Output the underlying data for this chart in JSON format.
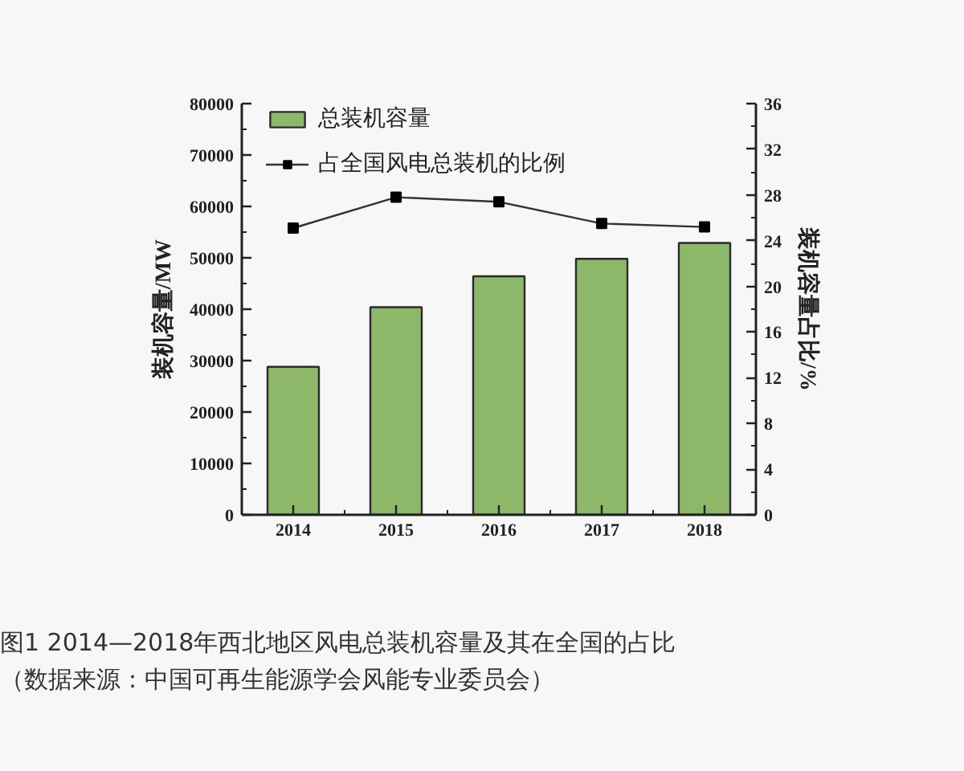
{
  "chart_data": {
    "type": "bar",
    "title": "图1 2014—2018年西北地区风电总装机容量及其在全国的占比",
    "annotations": [
      "（数据来源：中国可再生能源学会风能专业委员会）"
    ],
    "categories": [
      "2014",
      "2015",
      "2016",
      "2017",
      "2018"
    ],
    "ylabel": "装机容量/MW",
    "y2label": "装机容量占比/%",
    "ylim": [
      0,
      80000
    ],
    "yticks": [
      0,
      10000,
      20000,
      30000,
      40000,
      50000,
      60000,
      70000,
      80000
    ],
    "y2lim": [
      0,
      36
    ],
    "y2ticks": [
      0,
      4,
      8,
      12,
      16,
      20,
      24,
      28,
      32,
      36
    ],
    "series": [
      {
        "name": "总装机容量",
        "color": "#8db86a",
        "values": [
          28800,
          40400,
          46400,
          49800,
          52900
        ]
      },
      {
        "name": "占全国风电总装机的比例",
        "type": "line",
        "axis": "y2",
        "color": "#333333",
        "marker": "square",
        "values": [
          25.1,
          27.8,
          27.4,
          25.5,
          25.2
        ]
      }
    ],
    "legend": "top left",
    "grid": false
  }
}
